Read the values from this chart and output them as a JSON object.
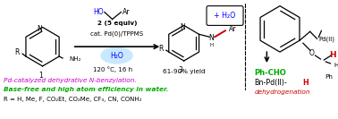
{
  "figsize": [
    3.78,
    1.33
  ],
  "dpi": 100,
  "bg_color": "#ffffff",
  "blue_color": "#0000ff",
  "red_color": "#cc0000",
  "green_color": "#00aa00",
  "purple_color": "#cc00cc",
  "black": "#000000",
  "bottom_texts": [
    {
      "text": "Pd-catalyzed dehydrative N-benzylation.",
      "color": "#cc00cc",
      "style": "italic",
      "weight": "normal",
      "fs_delta": 0.0
    },
    {
      "text": "Base-free and high atom efficiency in water.",
      "color": "#00aa00",
      "style": "italic",
      "weight": "bold",
      "fs_delta": 0.0
    },
    {
      "text": "R = H, Me, F, CO₂Et, CO₂Me, CF₃, CN, CONH₂",
      "color": "#000000",
      "style": "normal",
      "weight": "normal",
      "fs_delta": -0.3
    }
  ],
  "reagent_texts": {
    "HO": {
      "text": "HO",
      "color": "#0000ff"
    },
    "Ar_top": {
      "text": "Ar",
      "color": "#000000"
    },
    "line2": {
      "text": "2 (5 equiv)",
      "color": "#000000"
    },
    "line3": {
      "text": "cat. Pd(0)/TPPMS",
      "color": "#000000"
    },
    "h2o_oval": {
      "text": "H₂O",
      "color": "#0000ff"
    },
    "temp": {
      "text": "120 °C, 16 h",
      "color": "#000000"
    },
    "yield": {
      "text": "61-90% yield",
      "color": "#000000"
    }
  },
  "right_panel_texts": {
    "pd2": "Pd(II)",
    "O": "O",
    "H_red": "H",
    "H_black": "H",
    "Ph": "Ph",
    "ph_cho": "Ph-CHO",
    "bn_pd": "Bn-Pd(II)-",
    "bn_H": "H",
    "dehydro": "dehydrogenation"
  },
  "fs": 5.5
}
